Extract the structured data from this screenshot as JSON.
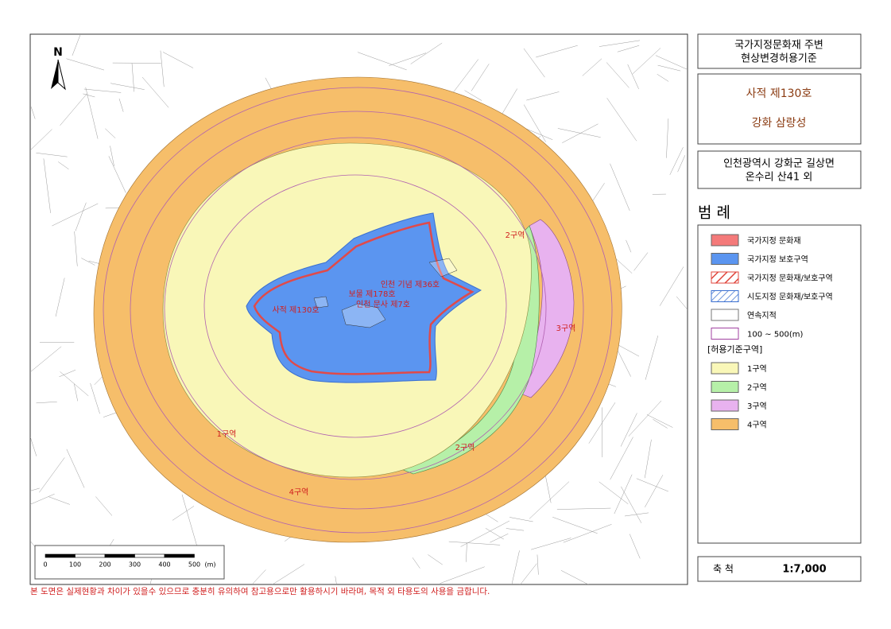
{
  "header": {
    "lines": [
      "국가지정문화재 주변",
      "현상변경허용기준"
    ]
  },
  "heritage": {
    "name": "사적 제130호",
    "place": "강화 삼랑성"
  },
  "location": {
    "lines": [
      "인천광역시 강화군 길상면",
      "온수리 산41 외"
    ]
  },
  "legend": {
    "title": "범 례",
    "items": [
      {
        "label": "국가지정 문화재",
        "style": "fill",
        "color": "#f47a7a"
      },
      {
        "label": "국가지정 보호구역",
        "style": "fill",
        "color": "#5b95f0"
      },
      {
        "label": "국가지정 문화재/보호구역",
        "style": "hatch",
        "color": "#e0463c"
      },
      {
        "label": "시도지정 문화재/보호구역",
        "style": "hatch",
        "color": "#3a6fd0"
      },
      {
        "label": "연속지적",
        "style": "outline",
        "color": "#777777"
      },
      {
        "label": "100 ~ 500(m)",
        "style": "outline",
        "color": "#a040a0"
      }
    ],
    "section": "[허용기준구역]",
    "zones": [
      {
        "label": "1구역",
        "style": "fill",
        "color": "#f9f7b8"
      },
      {
        "label": "2구역",
        "style": "fill",
        "color": "#b6f0a8"
      },
      {
        "label": "3구역",
        "style": "fill",
        "color": "#e8b2ef"
      },
      {
        "label": "4구역",
        "style": "fill",
        "color": "#f6be6a"
      }
    ]
  },
  "scale": {
    "label": "축 척",
    "value": "1:7,000"
  },
  "notice": "본 도면은 실제현황과 차이가 있을수 있으므로 충분히 유의하여 참고용으로만 활용하시기 바라며, 목적 외 타용도의 사용을 금합니다.",
  "map": {
    "north": "N",
    "labels": [
      "사적 제130호",
      "보물 제178호",
      "인천 기념 제36호",
      "인천 문사 제7호",
      "2구역",
      "3구역",
      "1구역",
      "2구역",
      "4구역"
    ],
    "scale_bar": {
      "ticks": [
        "0",
        "100",
        "200",
        "300",
        "400",
        "500"
      ],
      "unit": "(m)"
    }
  }
}
